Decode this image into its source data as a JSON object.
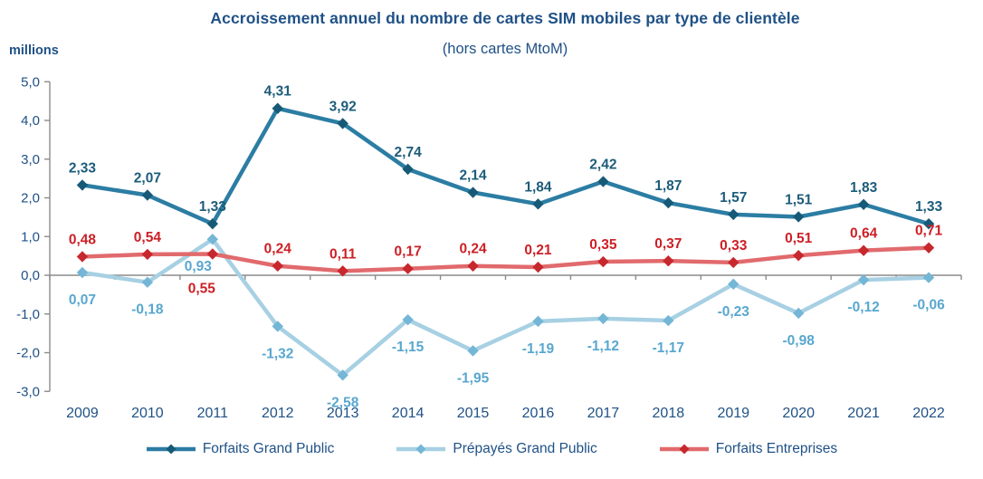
{
  "header": {
    "title": "Accroissement annuel du nombre de cartes SIM mobiles par type de clientèle",
    "subtitle": "(hors cartes MtoM)",
    "axis_unit": "millions"
  },
  "chart_data": {
    "type": "line",
    "categories": [
      "2009",
      "2010",
      "2011",
      "2012",
      "2013",
      "2014",
      "2015",
      "2016",
      "2017",
      "2018",
      "2019",
      "2020",
      "2021",
      "2022"
    ],
    "series": [
      {
        "name": "Forfaits Grand Public",
        "values": [
          2.33,
          2.07,
          1.33,
          4.31,
          3.92,
          2.74,
          2.14,
          1.84,
          2.42,
          1.87,
          1.57,
          1.51,
          1.83,
          1.33
        ],
        "labels": [
          "2,33",
          "2,07",
          "1,33",
          "4,31",
          "3,92",
          "2,74",
          "2,14",
          "1,84",
          "2,42",
          "1,87",
          "1,57",
          "1,51",
          "1,83",
          "1,33"
        ],
        "line_color": "#2B7DA3",
        "marker_color": "#175A78",
        "label_color": "#1C5C7A",
        "label_side": "above",
        "label_overrides": {}
      },
      {
        "name": "Prépayés Grand Public",
        "values": [
          0.07,
          -0.18,
          0.93,
          -1.32,
          -2.58,
          -1.15,
          -1.95,
          -1.19,
          -1.12,
          -1.17,
          -0.23,
          -0.98,
          -0.12,
          -0.06
        ],
        "labels": [
          "0,07",
          "-0,18",
          "0,93",
          "-1,32",
          "-2,58",
          "-1,15",
          "-1,95",
          "-1,19",
          "-1,12",
          "-1,17",
          "-0,23",
          "-0,98",
          "-0,12",
          "-0,06"
        ],
        "line_color": "#A7D0E3",
        "marker_color": "#74B6D6",
        "label_color": "#58A7CF",
        "label_side": "below",
        "label_overrides": {
          "2": {
            "dx": -16
          }
        }
      },
      {
        "name": "Forfaits Entreprises",
        "values": [
          0.48,
          0.54,
          0.55,
          0.24,
          0.11,
          0.17,
          0.24,
          0.21,
          0.35,
          0.37,
          0.33,
          0.51,
          0.64,
          0.71
        ],
        "labels": [
          "0,48",
          "0,54",
          "0,55",
          "0,24",
          "0,11",
          "0,17",
          "0,24",
          "0,21",
          "0,35",
          "0,37",
          "0,33",
          "0,51",
          "0,64",
          "0,71"
        ],
        "line_color": "#E16A6D",
        "marker_color": "#C7282D",
        "label_color": "#CC1F25",
        "label_side": "above",
        "label_overrides": {
          "2": {
            "side": "below",
            "dy": 8,
            "dx": -12
          }
        }
      }
    ],
    "title": "Accroissement annuel du nombre de cartes SIM mobiles par type de clientèle",
    "subtitle": "(hors cartes MtoM)",
    "ylabel": "millions",
    "xlabel": "",
    "ylim": [
      -3,
      5
    ],
    "yticks": [
      "5,0",
      "4,0",
      "3,0",
      "2,0",
      "1,0",
      "0,0",
      "-1,0",
      "-2,0",
      "-3,0"
    ],
    "ytick_values": [
      5,
      4,
      3,
      2,
      1,
      0,
      -1,
      -2,
      -3
    ],
    "grid": false,
    "legend_position": "bottom",
    "colors": {
      "axis_text": "#1F5186",
      "axis_line": "#8C8C8C"
    }
  }
}
